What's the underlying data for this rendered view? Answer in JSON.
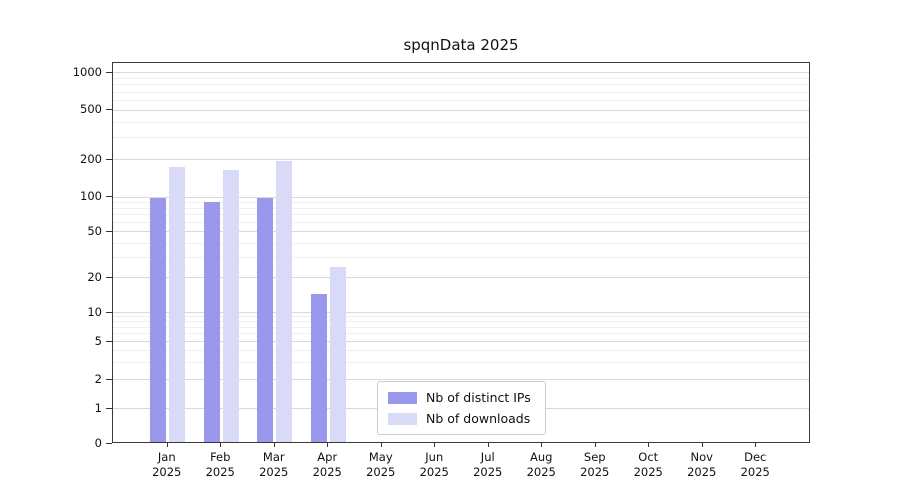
{
  "title": "spqnData 2025",
  "legend": {
    "items": [
      {
        "label": "Nb of distinct IPs",
        "color": "#9a98ec"
      },
      {
        "label": "Nb of downloads",
        "color": "#d9d9f8"
      }
    ]
  },
  "chart_data": {
    "type": "bar",
    "title": "spqnData 2025",
    "categories": [
      "Jan",
      "Feb",
      "Mar",
      "Apr",
      "May",
      "Jun",
      "Jul",
      "Aug",
      "Sep",
      "Oct",
      "Nov",
      "Dec"
    ],
    "x_year": "2025",
    "series": [
      {
        "name": "Nb of distinct IPs",
        "color": "#9a98ec",
        "values": [
          95,
          87,
          95,
          14,
          0,
          0,
          0,
          0,
          0,
          0,
          0,
          0
        ]
      },
      {
        "name": "Nb of downloads",
        "color": "#d9d9f8",
        "values": [
          170,
          160,
          190,
          24,
          0,
          0,
          0,
          0,
          0,
          0,
          0,
          0
        ]
      }
    ],
    "yscale": "symlog",
    "yticks": [
      0,
      1,
      2,
      5,
      10,
      20,
      50,
      100,
      200,
      500,
      1000
    ],
    "ylim": [
      0,
      1000
    ],
    "grid": true,
    "legend_position": "lower center"
  }
}
